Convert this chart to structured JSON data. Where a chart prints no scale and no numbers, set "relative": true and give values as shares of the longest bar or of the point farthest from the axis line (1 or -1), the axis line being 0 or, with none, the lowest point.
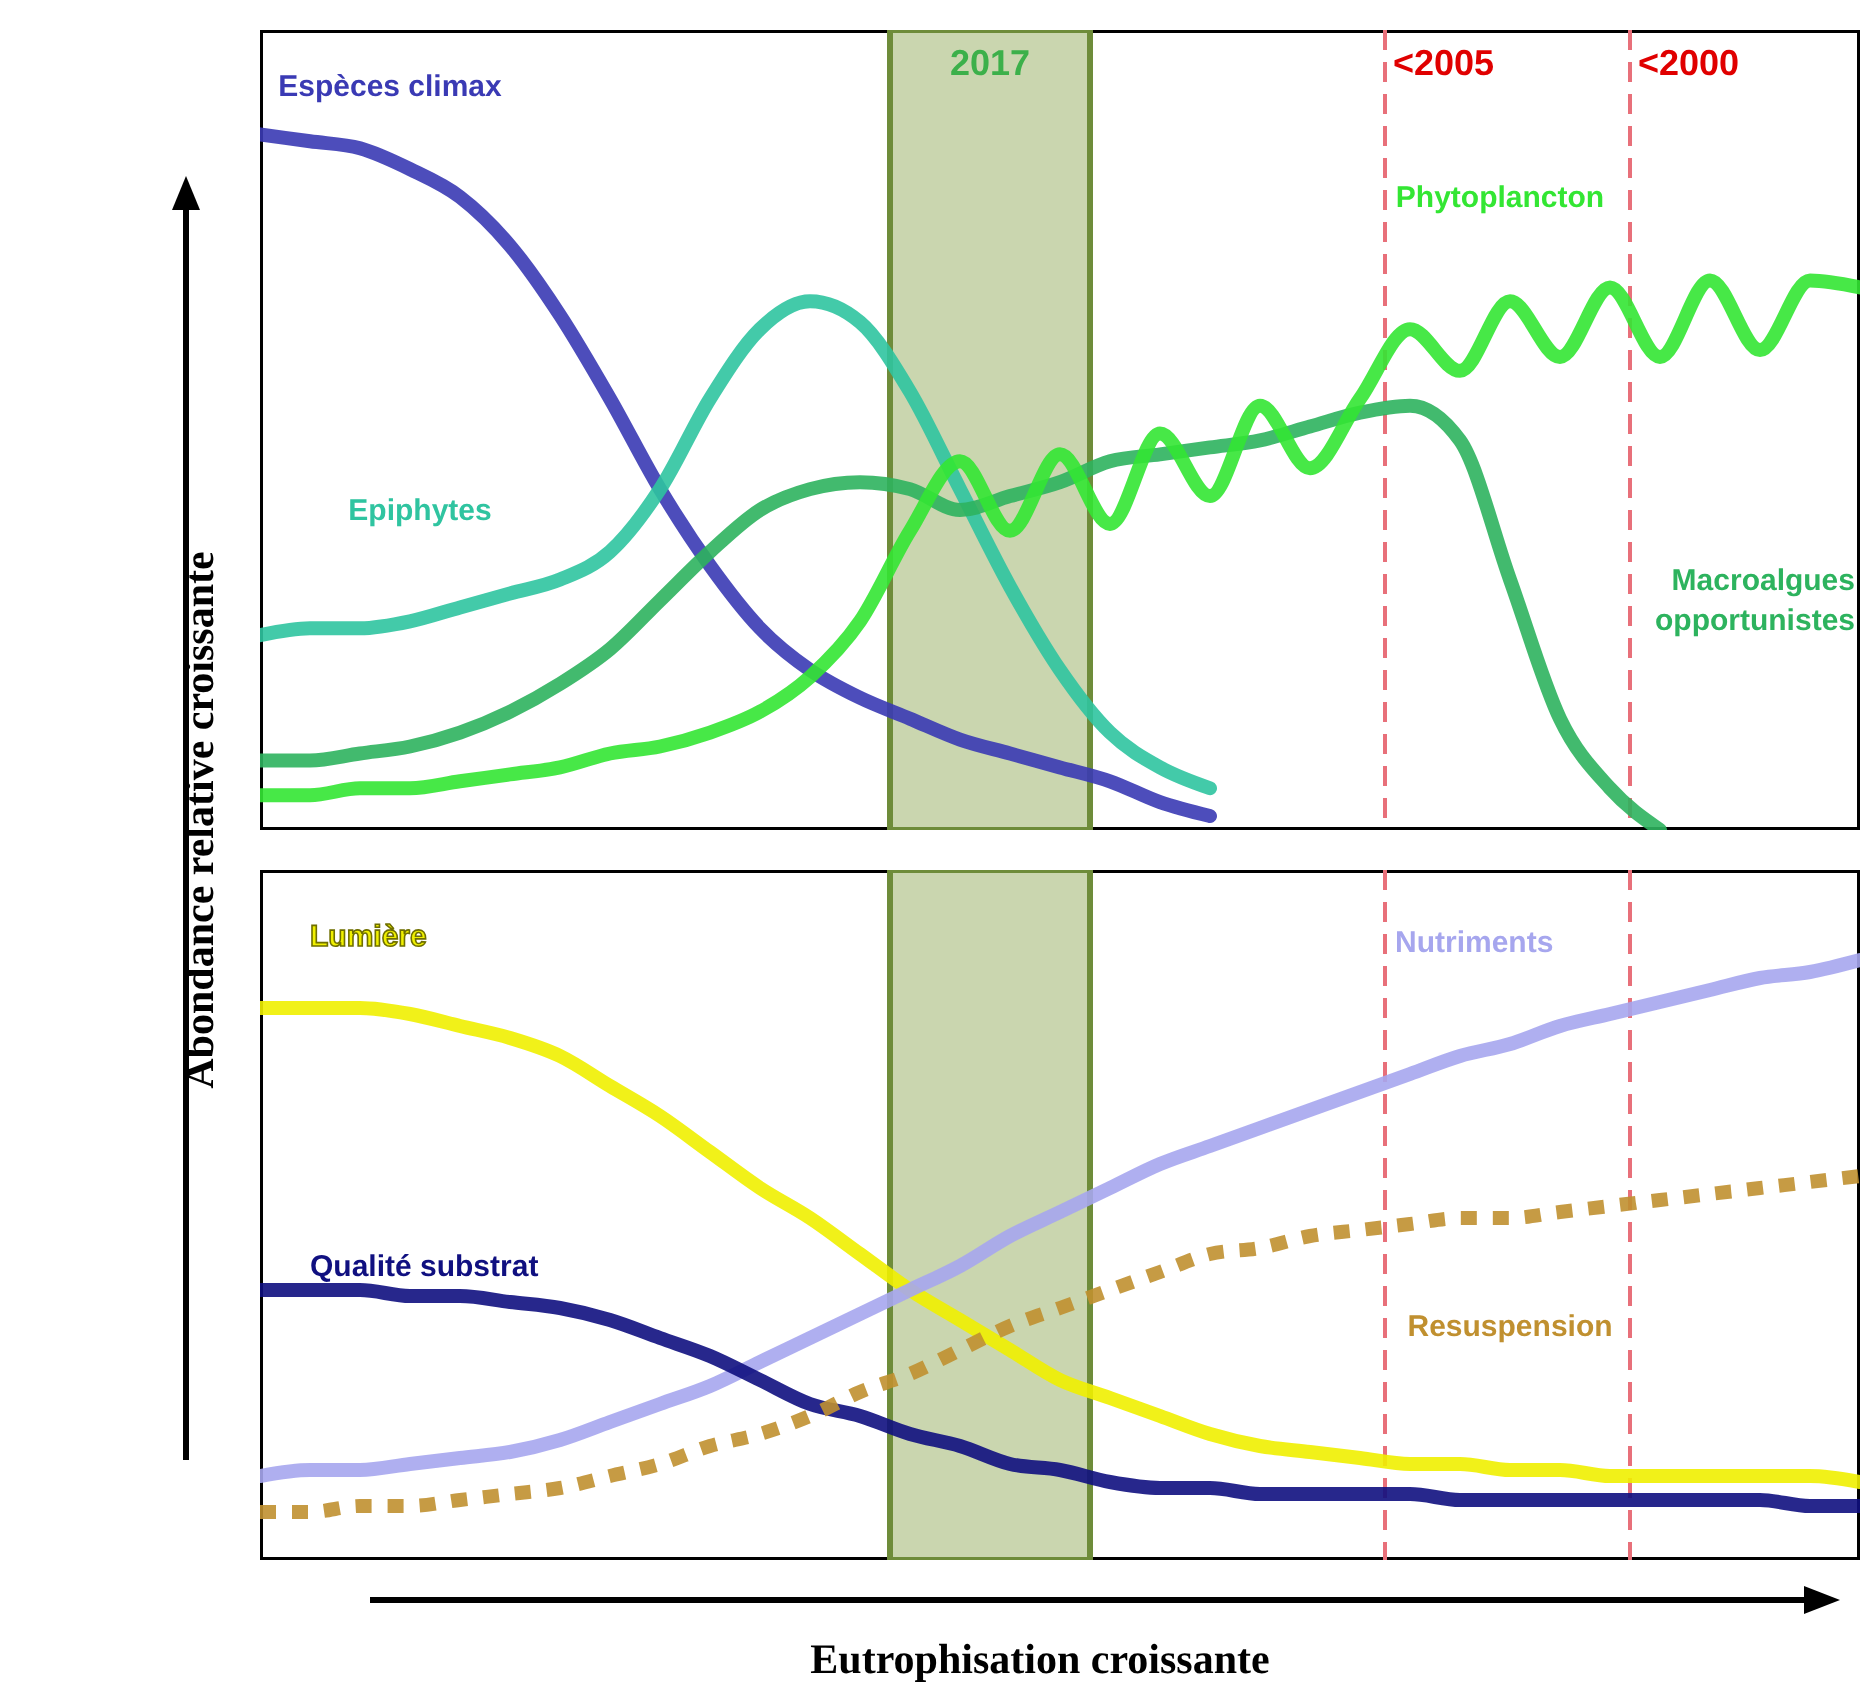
{
  "chart_data": [
    {
      "type": "line",
      "relative": true,
      "ylabel": "Abondance relative croissante",
      "annotations": [
        "2017",
        "<2005",
        "<2000"
      ],
      "categories": [
        null,
        null,
        null,
        null,
        null,
        null,
        null,
        null,
        null,
        null,
        null,
        null,
        null,
        null,
        null,
        null,
        null,
        null,
        null,
        null,
        null,
        null,
        null,
        null,
        null,
        null,
        null,
        null,
        null,
        null,
        null,
        null,
        null
      ],
      "series": [
        {
          "name": "Espèces climax",
          "color": "#3a3ab4",
          "values": [
            1.0,
            0.99,
            0.98,
            0.95,
            0.91,
            0.84,
            0.74,
            0.62,
            0.49,
            0.38,
            0.29,
            0.23,
            0.19,
            0.16,
            0.13,
            0.11,
            0.09,
            0.07,
            0.04,
            0.02,
            null,
            null,
            null,
            null,
            null,
            null,
            null,
            null,
            null,
            null,
            null,
            null,
            null
          ]
        },
        {
          "name": "Epiphytes",
          "color": "#2fc4a0",
          "values": [
            0.28,
            0.29,
            0.29,
            0.3,
            0.32,
            0.34,
            0.36,
            0.4,
            0.49,
            0.62,
            0.72,
            0.76,
            0.73,
            0.63,
            0.49,
            0.35,
            0.23,
            0.14,
            0.09,
            0.06,
            null,
            null,
            null,
            null,
            null,
            null,
            null,
            null,
            null,
            null,
            null,
            null,
            null
          ]
        },
        {
          "name": "Macroalgues opportunistes",
          "color": "#2db35e",
          "values": [
            0.1,
            0.1,
            0.11,
            0.12,
            0.14,
            0.17,
            0.21,
            0.26,
            0.33,
            0.4,
            0.46,
            0.49,
            0.5,
            0.49,
            0.46,
            0.48,
            0.5,
            0.53,
            0.54,
            0.55,
            0.56,
            0.58,
            0.6,
            0.61,
            0.56,
            0.36,
            0.16,
            0.06,
            0.0,
            null,
            null,
            null,
            null
          ]
        },
        {
          "name": "Phytoplancton",
          "color": "#33e633",
          "values": [
            0.05,
            0.05,
            0.06,
            0.06,
            0.07,
            0.08,
            0.09,
            0.11,
            0.12,
            0.14,
            0.17,
            0.22,
            0.3,
            0.43,
            0.53,
            0.43,
            0.54,
            0.44,
            0.57,
            0.48,
            0.61,
            0.52,
            0.62,
            0.72,
            0.66,
            0.76,
            0.68,
            0.78,
            0.68,
            0.79,
            0.69,
            0.79,
            0.78
          ]
        }
      ]
    },
    {
      "type": "line",
      "relative": true,
      "xlabel": "Eutrophisation croissante",
      "categories": [
        null,
        null,
        null,
        null,
        null,
        null,
        null,
        null,
        null,
        null,
        null,
        null,
        null,
        null,
        null,
        null,
        null,
        null,
        null,
        null,
        null,
        null,
        null,
        null,
        null,
        null,
        null,
        null,
        null,
        null,
        null,
        null,
        null
      ],
      "series": [
        {
          "name": "Lumière",
          "color": "#f0f000",
          "values": [
            0.92,
            0.92,
            0.92,
            0.91,
            0.89,
            0.87,
            0.84,
            0.79,
            0.74,
            0.68,
            0.62,
            0.57,
            0.51,
            0.45,
            0.4,
            0.35,
            0.3,
            0.27,
            0.24,
            0.21,
            0.19,
            0.18,
            0.17,
            0.16,
            0.16,
            0.15,
            0.15,
            0.14,
            0.14,
            0.14,
            0.14,
            0.14,
            0.13
          ]
        },
        {
          "name": "Nutriments",
          "color": "#a6a6ee",
          "values": [
            0.14,
            0.15,
            0.15,
            0.16,
            0.17,
            0.18,
            0.2,
            0.23,
            0.26,
            0.29,
            0.33,
            0.37,
            0.41,
            0.45,
            0.49,
            0.54,
            0.58,
            0.62,
            0.66,
            0.69,
            0.72,
            0.75,
            0.78,
            0.81,
            0.84,
            0.86,
            0.89,
            0.91,
            0.93,
            0.95,
            0.97,
            0.98,
            1.0
          ]
        },
        {
          "name": "Qualité substrat",
          "color": "#101080",
          "values": [
            0.45,
            0.45,
            0.45,
            0.44,
            0.44,
            0.43,
            0.42,
            0.4,
            0.37,
            0.34,
            0.3,
            0.26,
            0.24,
            0.21,
            0.19,
            0.16,
            0.15,
            0.13,
            0.12,
            0.12,
            0.11,
            0.11,
            0.11,
            0.11,
            0.1,
            0.1,
            0.1,
            0.1,
            0.1,
            0.1,
            0.1,
            0.09,
            0.09
          ]
        },
        {
          "name": "Resuspension",
          "color": "#c09030",
          "line_style": "dotted",
          "values": [
            0.08,
            0.08,
            0.09,
            0.09,
            0.1,
            0.11,
            0.12,
            0.14,
            0.16,
            0.19,
            0.21,
            0.24,
            0.28,
            0.31,
            0.35,
            0.39,
            0.42,
            0.45,
            0.48,
            0.51,
            0.52,
            0.54,
            0.55,
            0.56,
            0.57,
            0.57,
            0.58,
            0.59,
            0.6,
            0.61,
            0.62,
            0.63,
            0.64
          ]
        }
      ]
    }
  ]
}
